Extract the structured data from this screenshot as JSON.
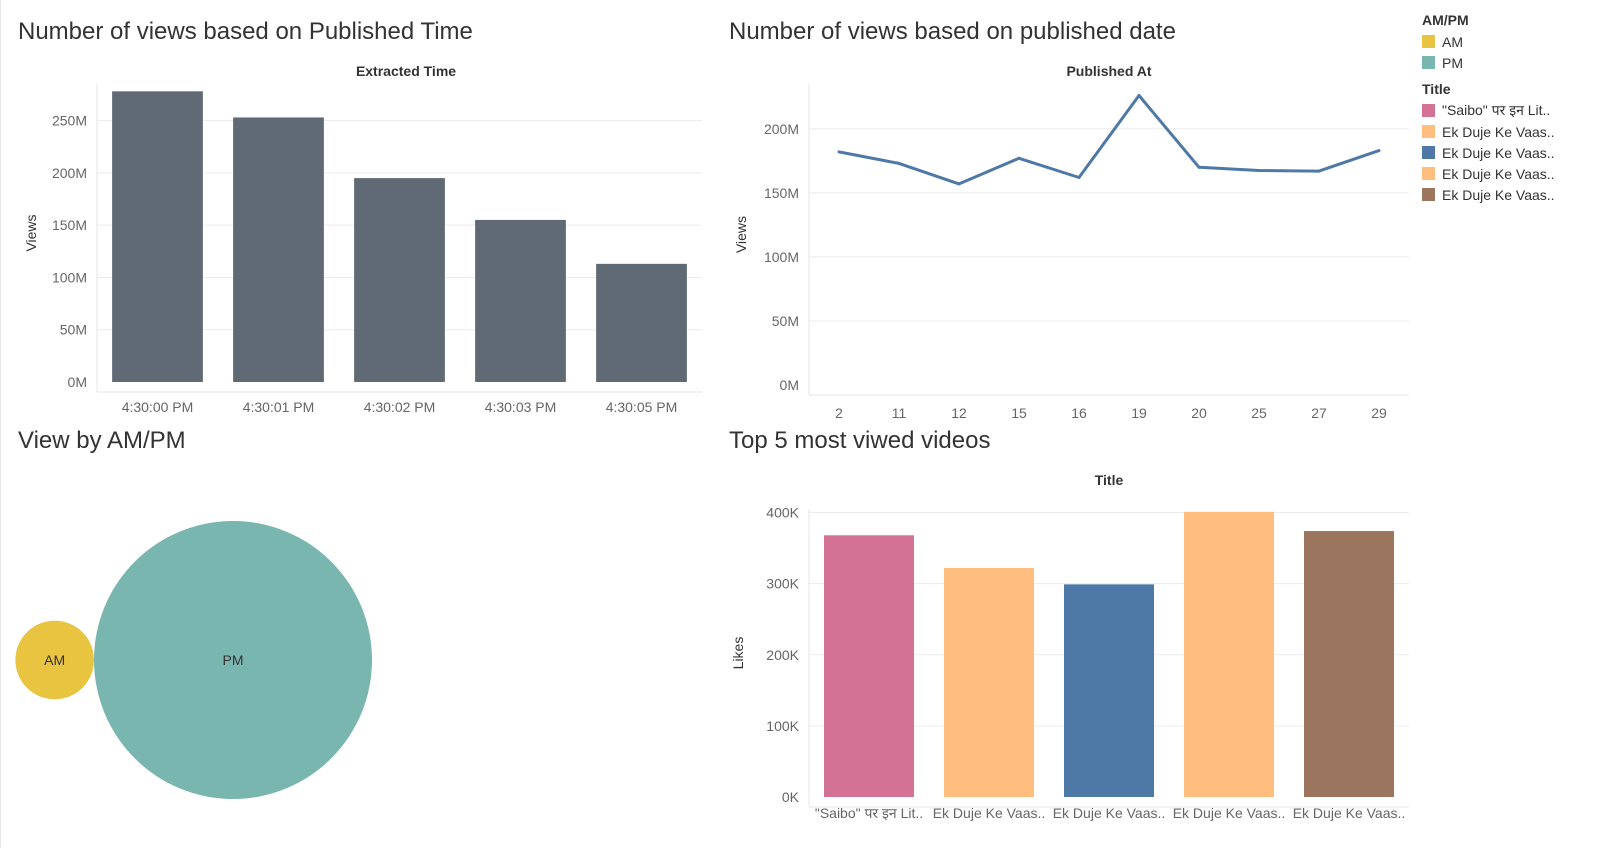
{
  "panels": {
    "published_time": {
      "title": "Number of views based on Published Time",
      "header": "Extracted Time"
    },
    "published_date": {
      "title": "Number of views based on published date",
      "header": "Published At"
    },
    "ampm": {
      "title": "View by AM/PM"
    },
    "top5": {
      "title": "Top 5 most viwed videos",
      "header": "Title"
    }
  },
  "legend": {
    "ampm_title": "AM/PM",
    "ampm_items": [
      {
        "label": "AM",
        "color": "#E9C441"
      },
      {
        "label": "PM",
        "color": "#79B6B0"
      }
    ],
    "title_title": "Title",
    "title_items": [
      {
        "label": "\"Saibo\" पर इन Lit..",
        "color": "#D37295"
      },
      {
        "label": "Ek Duje Ke Vaas..",
        "color": "#FFBE7D"
      },
      {
        "label": "Ek Duje Ke Vaas..",
        "color": "#4E79A7"
      },
      {
        "label": "Ek Duje Ke Vaas..",
        "color": "#FFBE7D"
      },
      {
        "label": "Ek Duje Ke Vaas..",
        "color": "#9C755F"
      }
    ]
  },
  "chart_data": [
    {
      "id": "views_by_time",
      "type": "bar",
      "title": "Number of views based on Published Time",
      "header": "Extracted Time",
      "xlabel": "",
      "ylabel": "Views",
      "categories": [
        "4:30:00 PM",
        "4:30:01 PM",
        "4:30:02 PM",
        "4:30:03 PM",
        "4:30:05 PM"
      ],
      "values": [
        278000000,
        253000000,
        195000000,
        155000000,
        113000000
      ],
      "ylim": [
        0,
        285000000
      ],
      "yticks": [
        0,
        50000000,
        100000000,
        150000000,
        200000000,
        250000000
      ],
      "ytick_labels": [
        "0M",
        "50M",
        "100M",
        "150M",
        "200M",
        "250M"
      ],
      "color": "#5F6A74",
      "grid": true
    },
    {
      "id": "views_by_date",
      "type": "line",
      "title": "Number of views based on published date",
      "header": "Published At",
      "xlabel": "",
      "ylabel": "Views",
      "x": [
        "2",
        "11",
        "12",
        "15",
        "16",
        "19",
        "20",
        "25",
        "27",
        "29"
      ],
      "values": [
        182000000,
        173000000,
        157000000,
        177000000,
        162000000,
        226000000,
        170000000,
        167500000,
        167000000,
        183000000
      ],
      "ylim": [
        0,
        235000000
      ],
      "yticks": [
        0,
        50000000,
        100000000,
        150000000,
        200000000
      ],
      "ytick_labels": [
        "0M",
        "50M",
        "100M",
        "150M",
        "200M"
      ],
      "color": "#4E79A7",
      "grid": true
    },
    {
      "id": "views_by_ampm",
      "type": "bubble",
      "title": "View by AM/PM",
      "categories": [
        "AM",
        "PM"
      ],
      "values": [
        8,
        100
      ],
      "colors": [
        "#E9C441",
        "#79B6B0"
      ]
    },
    {
      "id": "top5_videos",
      "type": "bar",
      "title": "Top 5 most viwed videos",
      "header": "Title",
      "xlabel": "",
      "ylabel": "Likes",
      "categories": [
        "\"Saibo\" पर इन Lit..",
        "Ek Duje Ke Vaas..",
        "Ek Duje Ke Vaas..",
        "Ek Duje Ke Vaas..",
        "Ek Duje Ke Vaas.."
      ],
      "values": [
        368000,
        322000,
        299000,
        401000,
        374000
      ],
      "ylim": [
        0,
        405000
      ],
      "yticks": [
        0,
        100000,
        200000,
        300000,
        400000
      ],
      "ytick_labels": [
        "0K",
        "100K",
        "200K",
        "300K",
        "400K"
      ],
      "colors": [
        "#D37295",
        "#FFBE7D",
        "#4E79A7",
        "#FFBE7D",
        "#9C755F"
      ],
      "grid": true
    }
  ]
}
